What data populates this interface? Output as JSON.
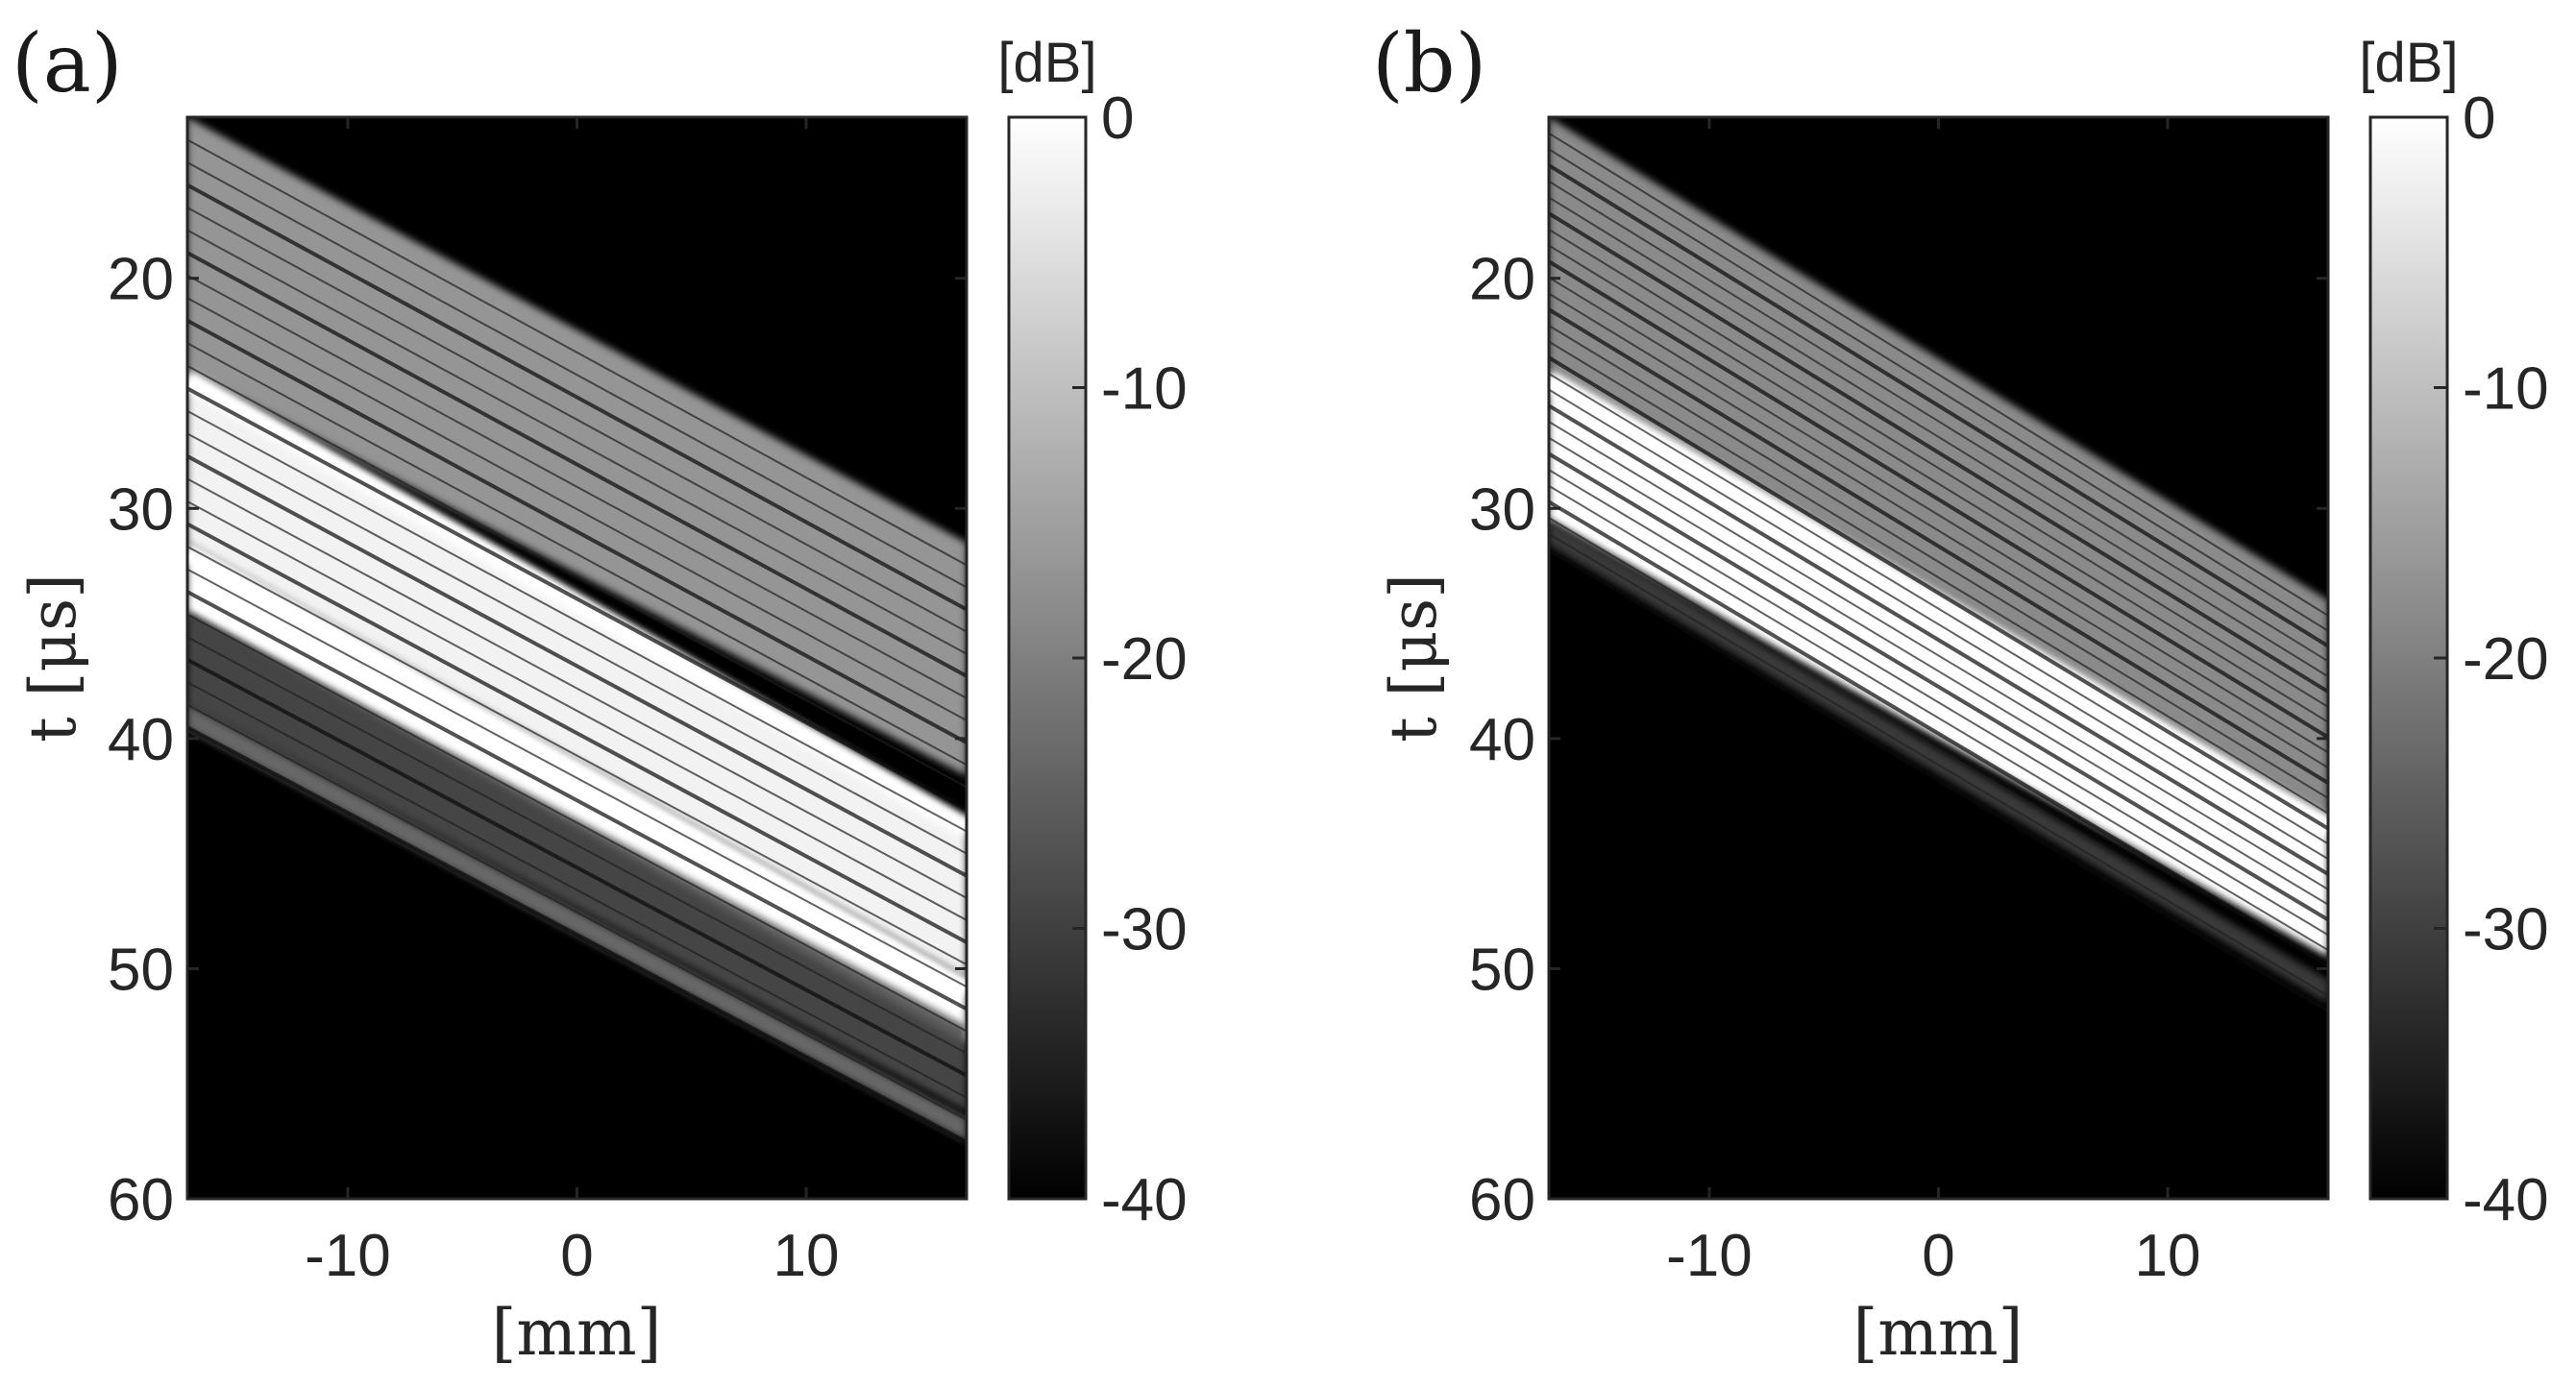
{
  "chart_data": [
    {
      "type": "heatmap",
      "panel_label": "(a)",
      "xlabel": "[mm]",
      "ylabel": "t [μs]",
      "xlim": [
        -17,
        17
      ],
      "ylim": [
        60,
        13
      ],
      "y_reversed": true,
      "xticks": [
        -10,
        0,
        10
      ],
      "xtick_labels": [
        "-10",
        "0",
        "10"
      ],
      "yticks": [
        20,
        30,
        40,
        50,
        60
      ],
      "ytick_labels": [
        "20",
        "30",
        "40",
        "50",
        "60"
      ],
      "colorbar": {
        "unit": "[dB]",
        "range": [
          -40,
          0
        ],
        "ticks": [
          0,
          -10,
          -20,
          -30,
          -40
        ],
        "tick_labels": [
          "0",
          "-10",
          "-20",
          "-30",
          "-40"
        ],
        "colormap": "gray"
      },
      "bands": [
        {
          "name": "upper-edge",
          "t_start": 13,
          "t_end": 31.5,
          "level_db": -14
        },
        {
          "name": "bright-echo-1",
          "t_start": 24,
          "t_end": 43.5,
          "level_db": -2
        },
        {
          "name": "bright-echo-2",
          "t_start": 31.5,
          "t_end": 50.5,
          "level_db": 0
        },
        {
          "name": "lower-edge",
          "t_start": 34.5,
          "t_end": 52.5,
          "level_db": -28
        },
        {
          "name": "faint-echo",
          "t_start": 38.5,
          "t_end": 56.5,
          "level_db": -22
        }
      ]
    },
    {
      "type": "heatmap",
      "panel_label": "(b)",
      "xlabel": "[mm]",
      "ylabel": "t [μs]",
      "xlim": [
        -17,
        17
      ],
      "ylim": [
        60,
        13
      ],
      "y_reversed": true,
      "xticks": [
        -10,
        0,
        10
      ],
      "xtick_labels": [
        "-10",
        "0",
        "10"
      ],
      "yticks": [
        20,
        30,
        40,
        50,
        60
      ],
      "ytick_labels": [
        "20",
        "30",
        "40",
        "50",
        "60"
      ],
      "colorbar": {
        "unit": "[dB]",
        "range": [
          -40,
          0
        ],
        "ticks": [
          0,
          -10,
          -20,
          -30,
          -40
        ],
        "tick_labels": [
          "0",
          "-10",
          "-20",
          "-30",
          "-40"
        ],
        "colormap": "gray"
      },
      "bands": [
        {
          "name": "upper-edge",
          "t_start": 13,
          "t_end": 34,
          "level_db": -16
        },
        {
          "name": "bright-echo-1",
          "t_start": 24,
          "t_end": 43.5,
          "level_db": 0
        },
        {
          "name": "lower-edge",
          "t_start": 30.5,
          "t_end": 50.5,
          "level_db": -30
        }
      ]
    }
  ]
}
